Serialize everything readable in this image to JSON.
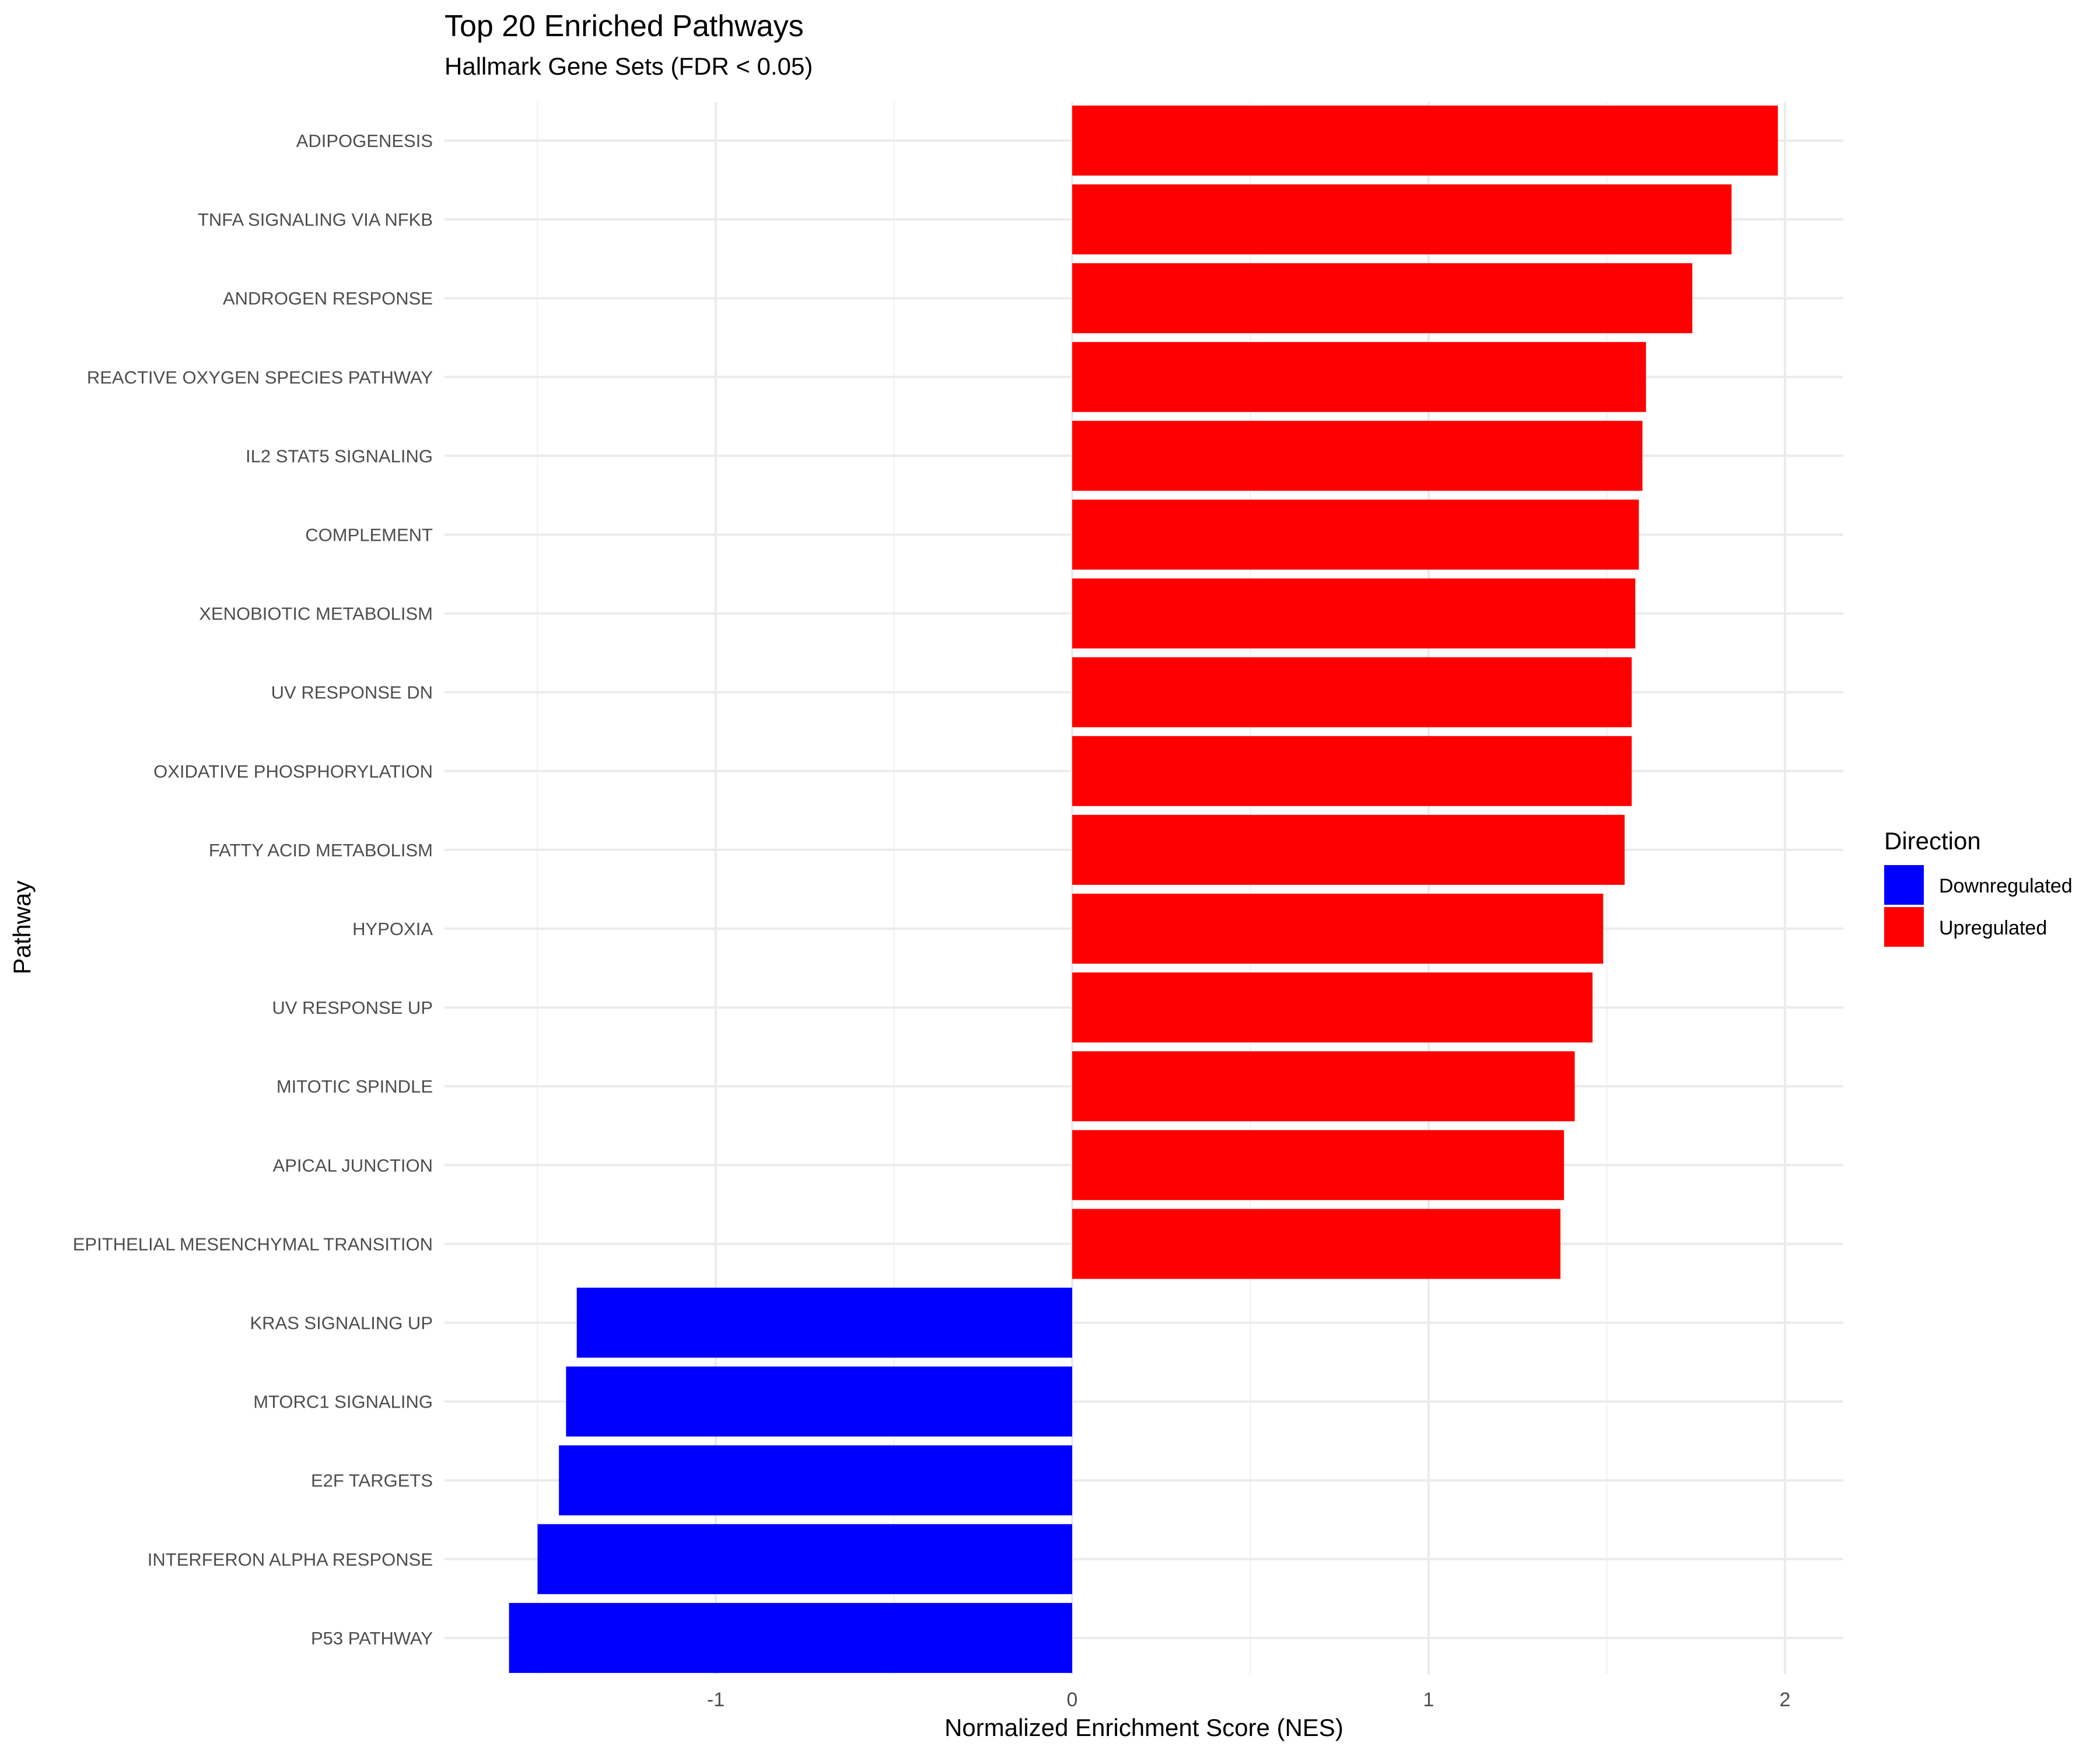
{
  "chart_data": {
    "type": "bar",
    "orientation": "horizontal",
    "title": "Top 20 Enriched Pathways",
    "subtitle": "Hallmark Gene Sets (FDR < 0.05)",
    "xlabel": "Normalized Enrichment Score (NES)",
    "ylabel": "Pathway",
    "xlim": [
      -1.8,
      2.15
    ],
    "xticks": [
      -1,
      0,
      1,
      2
    ],
    "xtick_labels": [
      "-1",
      "0",
      "1",
      "2"
    ],
    "grid": true,
    "legend": {
      "title": "Direction",
      "placement": "right",
      "entries": [
        {
          "label": "Downregulated",
          "color": "#0000ff"
        },
        {
          "label": "Upregulated",
          "color": "#ff0000"
        }
      ]
    },
    "categories": [
      "ADIPOGENESIS",
      "TNFA SIGNALING VIA NFKB",
      "ANDROGEN RESPONSE",
      "REACTIVE OXYGEN SPECIES PATHWAY",
      "IL2 STAT5 SIGNALING",
      "COMPLEMENT",
      "XENOBIOTIC METABOLISM",
      "UV RESPONSE DN",
      "OXIDATIVE PHOSPHORYLATION",
      "FATTY ACID METABOLISM",
      "HYPOXIA",
      "UV RESPONSE UP",
      "MITOTIC SPINDLE",
      "APICAL JUNCTION",
      "EPITHELIAL MESENCHYMAL TRANSITION",
      "KRAS SIGNALING UP",
      "MTORC1 SIGNALING",
      "E2F TARGETS",
      "INTERFERON ALPHA RESPONSE",
      "P53 PATHWAY"
    ],
    "values": [
      1.98,
      1.85,
      1.74,
      1.61,
      1.6,
      1.59,
      1.58,
      1.57,
      1.57,
      1.55,
      1.49,
      1.46,
      1.41,
      1.38,
      1.37,
      -1.39,
      -1.42,
      -1.44,
      -1.5,
      -1.58
    ],
    "directions": [
      "Upregulated",
      "Upregulated",
      "Upregulated",
      "Upregulated",
      "Upregulated",
      "Upregulated",
      "Upregulated",
      "Upregulated",
      "Upregulated",
      "Upregulated",
      "Upregulated",
      "Upregulated",
      "Upregulated",
      "Upregulated",
      "Upregulated",
      "Downregulated",
      "Downregulated",
      "Downregulated",
      "Downregulated",
      "Downregulated"
    ],
    "colors": {
      "Upregulated": "#ff0000",
      "Downregulated": "#0000ff"
    }
  }
}
